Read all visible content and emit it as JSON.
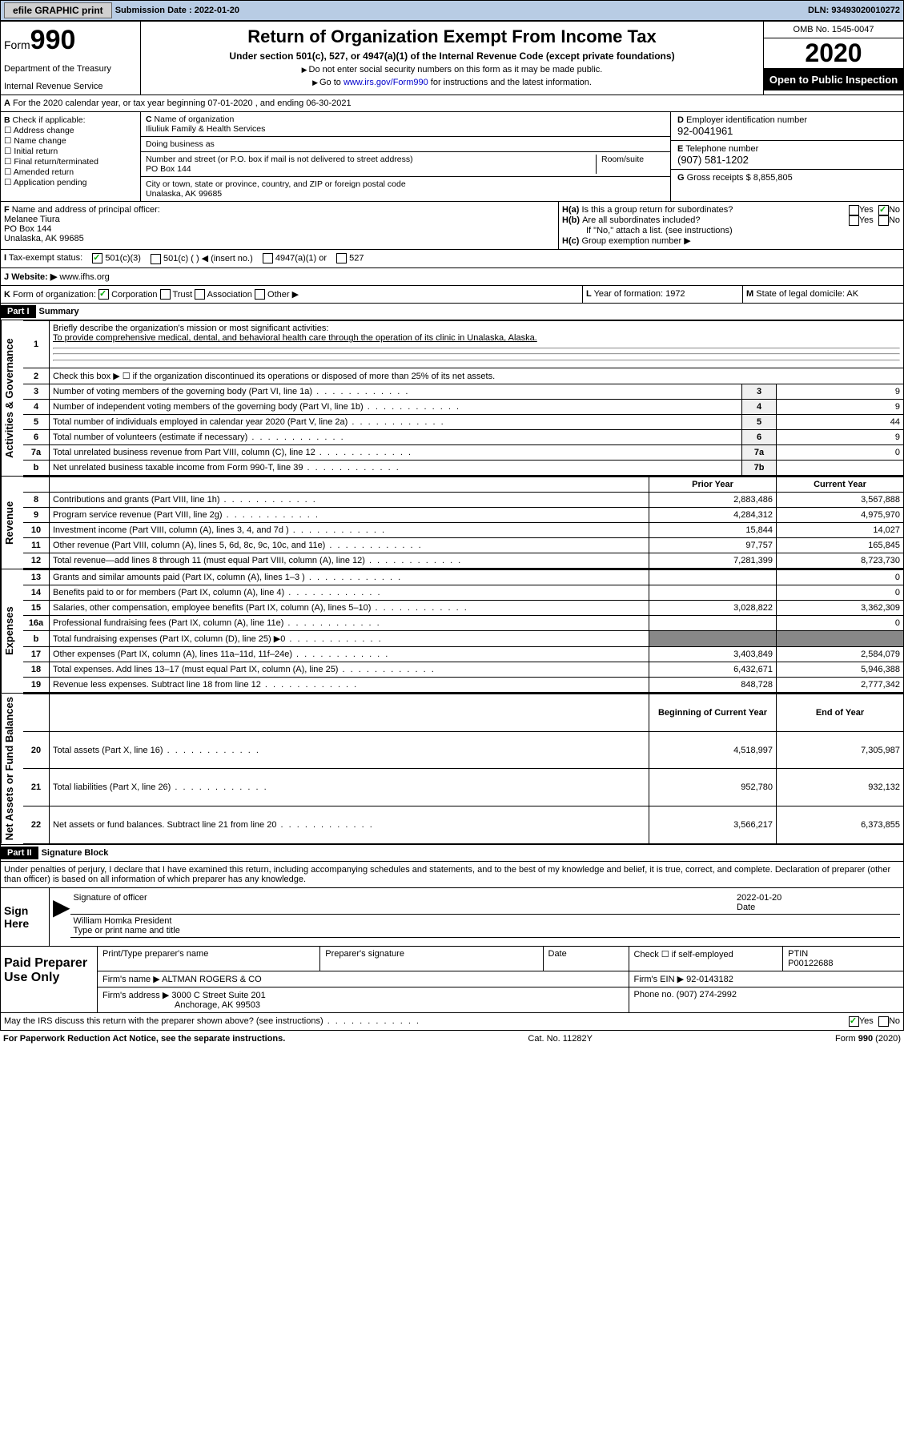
{
  "colors": {
    "topbar_bg": "#b8cce4",
    "black": "#000000",
    "link": "#0000cc",
    "grey_cell": "#888888",
    "lt_grey": "#f0f0f0"
  },
  "top": {
    "efile": "efile GRAPHIC print",
    "subm_lbl": "Submission Date : 2022-01-20",
    "dln": "DLN: 93493020010272"
  },
  "hdr": {
    "form": "Form",
    "num": "990",
    "dept": "Department of the Treasury",
    "irs": "Internal Revenue Service",
    "title": "Return of Organization Exempt From Income Tax",
    "sub": "Under section 501(c), 527, or 4947(a)(1) of the Internal Revenue Code (except private foundations)",
    "n1": "Do not enter social security numbers on this form as it may be made public.",
    "n2_pre": "Go to ",
    "n2_link": "www.irs.gov/Form990",
    "n2_post": " for instructions and the latest information.",
    "omb": "OMB No. 1545-0047",
    "year": "2020",
    "pub": "Open to Public Inspection"
  },
  "A": "For the 2020 calendar year, or tax year beginning 07-01-2020    , and ending 06-30-2021",
  "B": {
    "lbl": "Check if applicable:",
    "o1": "Address change",
    "o2": "Name change",
    "o3": "Initial return",
    "o4": "Final return/terminated",
    "o5": "Amended return",
    "o6": "Application pending"
  },
  "C": {
    "name_lbl": "Name of organization",
    "name": "Iliuliuk Family & Health Services",
    "dba_lbl": "Doing business as",
    "addr_lbl": "Number and street (or P.O. box if mail is not delivered to street address)",
    "addr": "PO Box 144",
    "room_lbl": "Room/suite",
    "city_lbl": "City or town, state or province, country, and ZIP or foreign postal code",
    "city": "Unalaska, AK  99685"
  },
  "D": {
    "lbl": "Employer identification number",
    "val": "92-0041961"
  },
  "E": {
    "lbl": "Telephone number",
    "val": "(907) 581-1202"
  },
  "G": {
    "lbl": "Gross receipts $",
    "val": "8,855,805"
  },
  "F": {
    "lbl": "Name and address of principal officer:",
    "name": "Melanee Tiura",
    "addr": "PO Box 144",
    "city": "Unalaska, AK  99685"
  },
  "H": {
    "a": "Is this a group return for subordinates?",
    "b": "Are all subordinates included?",
    "b2": "If \"No,\" attach a list. (see instructions)",
    "c": "Group exemption number ▶",
    "yes": "Yes",
    "no": "No"
  },
  "tax": {
    "lbl": "Tax-exempt status:",
    "o1": "501(c)(3)",
    "o2": "501(c) (  ) ◀ (insert no.)",
    "o3": "4947(a)(1) or",
    "o4": "527"
  },
  "J": {
    "lbl": "Website: ▶",
    "val": "www.ifhs.org"
  },
  "K": {
    "lbl": "Form of organization:",
    "o1": "Corporation",
    "o2": "Trust",
    "o3": "Association",
    "o4": "Other ▶"
  },
  "L": {
    "lbl": "Year of formation:",
    "val": "1972"
  },
  "M": {
    "lbl": "State of legal domicile:",
    "val": "AK"
  },
  "parts": {
    "p1": "Part I",
    "p1t": "Summary",
    "p2": "Part II",
    "p2t": "Signature Block"
  },
  "summary": {
    "q1": "Briefly describe the organization's mission or most significant activities:",
    "q1a": "To provide comprehensive medical, dental, and behavioral health care through the operation of its clinic in Unalaska, Alaska.",
    "q2": "Check this box ▶ ☐  if the organization discontinued its operations or disposed of more than 25% of its net assets.",
    "rows_gov": [
      {
        "n": "3",
        "d": "Number of voting members of the governing body (Part VI, line 1a)",
        "ln": "3",
        "v": "9"
      },
      {
        "n": "4",
        "d": "Number of independent voting members of the governing body (Part VI, line 1b)",
        "ln": "4",
        "v": "9"
      },
      {
        "n": "5",
        "d": "Total number of individuals employed in calendar year 2020 (Part V, line 2a)",
        "ln": "5",
        "v": "44"
      },
      {
        "n": "6",
        "d": "Total number of volunteers (estimate if necessary)",
        "ln": "6",
        "v": "9"
      },
      {
        "n": "7a",
        "d": "Total unrelated business revenue from Part VIII, column (C), line 12",
        "ln": "7a",
        "v": "0"
      },
      {
        "n": "b",
        "d": "Net unrelated business taxable income from Form 990-T, line 39",
        "ln": "7b",
        "v": ""
      }
    ],
    "h_prior": "Prior Year",
    "h_curr": "Current Year",
    "rev": [
      {
        "n": "8",
        "d": "Contributions and grants (Part VIII, line 1h)",
        "p": "2,883,486",
        "c": "3,567,888"
      },
      {
        "n": "9",
        "d": "Program service revenue (Part VIII, line 2g)",
        "p": "4,284,312",
        "c": "4,975,970"
      },
      {
        "n": "10",
        "d": "Investment income (Part VIII, column (A), lines 3, 4, and 7d )",
        "p": "15,844",
        "c": "14,027"
      },
      {
        "n": "11",
        "d": "Other revenue (Part VIII, column (A), lines 5, 6d, 8c, 9c, 10c, and 11e)",
        "p": "97,757",
        "c": "165,845"
      },
      {
        "n": "12",
        "d": "Total revenue—add lines 8 through 11 (must equal Part VIII, column (A), line 12)",
        "p": "7,281,399",
        "c": "8,723,730"
      }
    ],
    "exp": [
      {
        "n": "13",
        "d": "Grants and similar amounts paid (Part IX, column (A), lines 1–3 )",
        "p": "",
        "c": "0"
      },
      {
        "n": "14",
        "d": "Benefits paid to or for members (Part IX, column (A), line 4)",
        "p": "",
        "c": "0"
      },
      {
        "n": "15",
        "d": "Salaries, other compensation, employee benefits (Part IX, column (A), lines 5–10)",
        "p": "3,028,822",
        "c": "3,362,309"
      },
      {
        "n": "16a",
        "d": "Professional fundraising fees (Part IX, column (A), line 11e)",
        "p": "",
        "c": "0"
      },
      {
        "n": "b",
        "d": "Total fundraising expenses (Part IX, column (D), line 25) ▶0",
        "p": "grey",
        "c": "grey"
      },
      {
        "n": "17",
        "d": "Other expenses (Part IX, column (A), lines 11a–11d, 11f–24e)",
        "p": "3,403,849",
        "c": "2,584,079"
      },
      {
        "n": "18",
        "d": "Total expenses. Add lines 13–17 (must equal Part IX, column (A), line 25)",
        "p": "6,432,671",
        "c": "5,946,388"
      },
      {
        "n": "19",
        "d": "Revenue less expenses. Subtract line 18 from line 12",
        "p": "848,728",
        "c": "2,777,342"
      }
    ],
    "h_beg": "Beginning of Current Year",
    "h_end": "End of Year",
    "net": [
      {
        "n": "20",
        "d": "Total assets (Part X, line 16)",
        "p": "4,518,997",
        "c": "7,305,987"
      },
      {
        "n": "21",
        "d": "Total liabilities (Part X, line 26)",
        "p": "952,780",
        "c": "932,132"
      },
      {
        "n": "22",
        "d": "Net assets or fund balances. Subtract line 21 from line 20",
        "p": "3,566,217",
        "c": "6,373,855"
      }
    ]
  },
  "vl": {
    "gov": "Activities & Governance",
    "rev": "Revenue",
    "exp": "Expenses",
    "net": "Net Assets or Fund Balances"
  },
  "sig": {
    "decl": "Under penalties of perjury, I declare that I have examined this return, including accompanying schedules and statements, and to the best of my knowledge and belief, it is true, correct, and complete. Declaration of preparer (other than officer) is based on all information of which preparer has any knowledge.",
    "here": "Sign Here",
    "sig_lbl": "Signature of officer",
    "date_lbl": "Date",
    "date": "2022-01-20",
    "name": "William Homka  President",
    "name_lbl": "Type or print name and title"
  },
  "prep": {
    "lbl": "Paid Preparer Use Only",
    "h_name": "Print/Type preparer's name",
    "h_sig": "Preparer's signature",
    "h_date": "Date",
    "h_ck": "Check ☐ if self-employed",
    "h_ptin": "PTIN",
    "ptin": "P00122688",
    "firm_lbl": "Firm's name   ▶",
    "firm": "ALTMAN ROGERS & CO",
    "ein_lbl": "Firm's EIN ▶",
    "ein": "92-0143182",
    "addr_lbl": "Firm's address ▶",
    "addr": "3000 C Street Suite 201",
    "city": "Anchorage, AK  99503",
    "ph_lbl": "Phone no.",
    "ph": "(907) 274-2992"
  },
  "discuss": "May the IRS discuss this return with the preparer shown above? (see instructions)",
  "foot": {
    "l": "For Paperwork Reduction Act Notice, see the separate instructions.",
    "c": "Cat. No. 11282Y",
    "r": "Form 990 (2020)"
  }
}
